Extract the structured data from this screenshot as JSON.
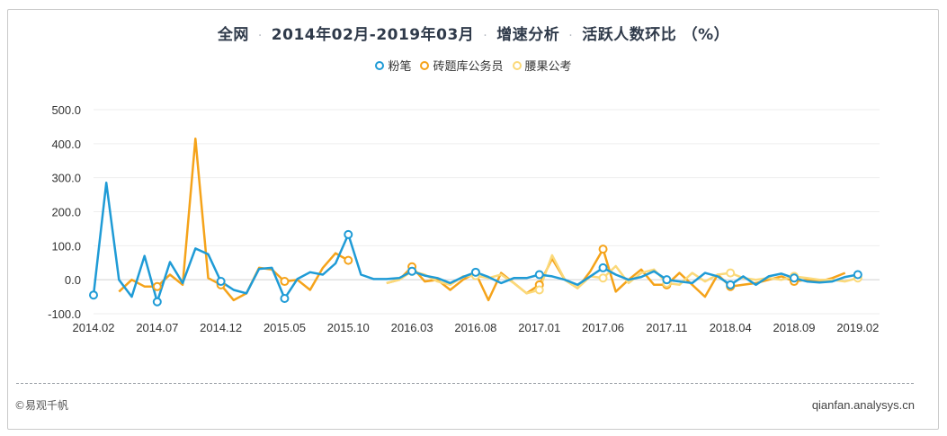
{
  "title": {
    "part1": "全网",
    "part2": "2014年02月-2019年03月",
    "part3": "增速分析",
    "part4": "活跃人数环比 （%）",
    "separator": "·"
  },
  "footer": {
    "left": "©易观千帆",
    "right": "qianfan.analysys.cn"
  },
  "chart_data": {
    "type": "line",
    "title": "全网 · 2014年02月-2019年03月 · 增速分析 · 活跃人数环比 （%）",
    "ylim": [
      -100,
      500
    ],
    "y_ticks": [
      "500.0",
      "400.0",
      "300.0",
      "200.0",
      "100.0",
      "0.0",
      "-100.0"
    ],
    "y_tick_values": [
      500,
      400,
      300,
      200,
      100,
      0,
      -100
    ],
    "x_tick_labels": [
      "2014.02",
      "2014.07",
      "2014.12",
      "2015.05",
      "2015.10",
      "2016.03",
      "2016.08",
      "2017.01",
      "2017.06",
      "2017.11",
      "2018.04",
      "2018.09",
      "2019.02"
    ],
    "x_tick_index_step": 5,
    "x_count": 62,
    "grid": true,
    "legend_position": "top-center",
    "series": [
      {
        "name": "粉笔",
        "color": "#1f9bd6",
        "marker_indices": [
          0,
          5,
          10,
          15,
          20,
          25,
          30,
          35,
          40,
          45,
          50,
          55,
          60
        ],
        "values": [
          -45,
          285,
          0,
          -50,
          70,
          -65,
          52,
          -10,
          92,
          75,
          -5,
          -30,
          -40,
          32,
          35,
          -55,
          2,
          22,
          15,
          48,
          133,
          15,
          2,
          2,
          5,
          25,
          12,
          5,
          -10,
          8,
          22,
          8,
          -10,
          5,
          5,
          15,
          10,
          0,
          -15,
          10,
          35,
          15,
          0,
          8,
          25,
          0,
          -5,
          -10,
          20,
          10,
          -15,
          10,
          -15,
          10,
          18,
          5,
          -5,
          -8,
          -5,
          8,
          15,
          null
        ]
      },
      {
        "name": "砖题库公务员",
        "color": "#f5a31a",
        "marker_indices": [
          5,
          10,
          15,
          20,
          25,
          30,
          35,
          40,
          45,
          50,
          55
        ],
        "values": [
          null,
          null,
          -35,
          0,
          -20,
          -20,
          15,
          -15,
          415,
          5,
          -15,
          -60,
          -40,
          35,
          30,
          -5,
          0,
          -30,
          35,
          78,
          57,
          null,
          null,
          -10,
          0,
          38,
          -5,
          0,
          -30,
          0,
          20,
          -60,
          20,
          -10,
          -40,
          -15,
          62,
          0,
          -25,
          25,
          90,
          -35,
          0,
          30,
          -15,
          -15,
          20,
          -15,
          -50,
          15,
          -20,
          -15,
          -10,
          0,
          10,
          -5,
          0,
          -5,
          5,
          20,
          null,
          null
        ]
      },
      {
        "name": "腰果公考",
        "color": "#fbd97a",
        "marker_indices": [
          25,
          30,
          35,
          40,
          45,
          50,
          55,
          60
        ],
        "values": [
          null,
          null,
          null,
          null,
          null,
          null,
          null,
          null,
          null,
          null,
          null,
          null,
          null,
          null,
          null,
          null,
          null,
          null,
          null,
          null,
          null,
          null,
          null,
          -10,
          0,
          25,
          15,
          -5,
          -15,
          10,
          12,
          5,
          15,
          -10,
          -40,
          -30,
          72,
          0,
          -25,
          10,
          5,
          40,
          -10,
          20,
          30,
          -10,
          -15,
          20,
          -5,
          15,
          20,
          5,
          0,
          5,
          0,
          10,
          5,
          0,
          0,
          -5,
          5,
          null
        ]
      }
    ]
  }
}
